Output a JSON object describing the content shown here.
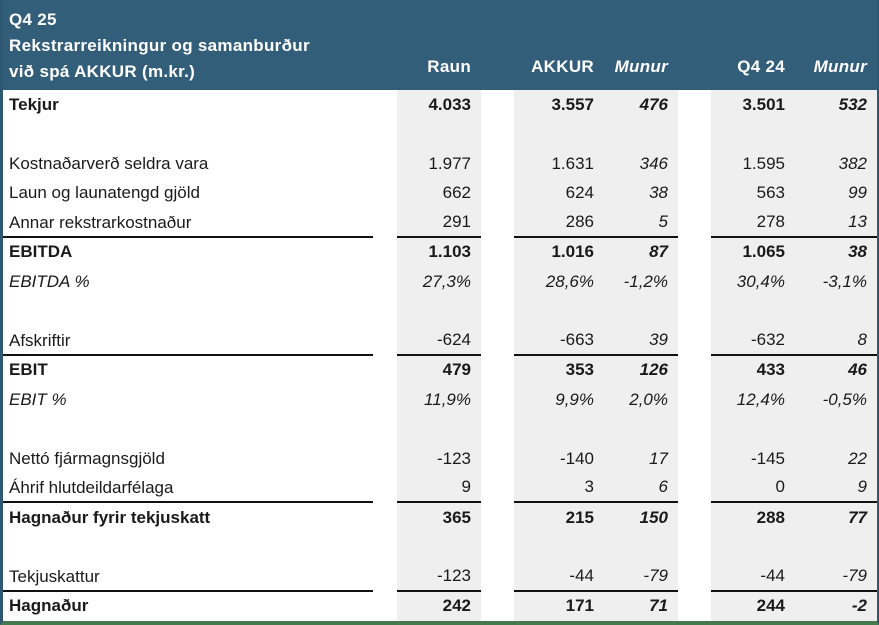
{
  "header": {
    "period": "Q4 25",
    "title_line1": "Rekstrarreikningur og samanburður",
    "title_line2": "við spá AKKUR (m.kr.)",
    "columns": [
      "Raun",
      "AKKUR",
      "Munur",
      "Q4 24",
      "Munur"
    ]
  },
  "colors": {
    "header_bg": "#335E7A",
    "header_text": "#FFFFFF",
    "shaded_col": "#EFEFEF",
    "text": "#1A1A1A",
    "outline": "#2E5872",
    "bottom_accent": "#45784D",
    "rule": "#111111"
  },
  "rows": [
    {
      "label": "Tekjur",
      "style": "bold",
      "underline": false,
      "raun": "4.033",
      "akkur": "3.557",
      "munur_akkur": "476",
      "q424": "3.501",
      "munur_q424": "532"
    },
    {
      "label": "",
      "style": "blank",
      "underline": false,
      "raun": "",
      "akkur": "",
      "munur_akkur": "",
      "q424": "",
      "munur_q424": ""
    },
    {
      "label": "Kostnaðarverð seldra vara",
      "style": "normal",
      "underline": false,
      "raun": "1.977",
      "akkur": "1.631",
      "munur_akkur": "346",
      "q424": "1.595",
      "munur_q424": "382"
    },
    {
      "label": "Laun og launatengd gjöld",
      "style": "normal",
      "underline": false,
      "raun": "662",
      "akkur": "624",
      "munur_akkur": "38",
      "q424": "563",
      "munur_q424": "99"
    },
    {
      "label": "Annar rekstrarkostnaður",
      "style": "normal",
      "underline": true,
      "raun": "291",
      "akkur": "286",
      "munur_akkur": "5",
      "q424": "278",
      "munur_q424": "13"
    },
    {
      "label": "EBITDA",
      "style": "bold",
      "underline": false,
      "raun": "1.103",
      "akkur": "1.016",
      "munur_akkur": "87",
      "q424": "1.065",
      "munur_q424": "38"
    },
    {
      "label": "EBITDA %",
      "style": "italic",
      "underline": false,
      "raun": "27,3%",
      "akkur": "28,6%",
      "munur_akkur": "-1,2%",
      "q424": "30,4%",
      "munur_q424": "-3,1%"
    },
    {
      "label": "",
      "style": "blank",
      "underline": false,
      "raun": "",
      "akkur": "",
      "munur_akkur": "",
      "q424": "",
      "munur_q424": ""
    },
    {
      "label": "Afskriftir",
      "style": "normal",
      "underline": true,
      "raun": "-624",
      "akkur": "-663",
      "munur_akkur": "39",
      "q424": "-632",
      "munur_q424": "8"
    },
    {
      "label": "EBIT",
      "style": "bold",
      "underline": false,
      "raun": "479",
      "akkur": "353",
      "munur_akkur": "126",
      "q424": "433",
      "munur_q424": "46"
    },
    {
      "label": "EBIT %",
      "style": "italic",
      "underline": false,
      "raun": "11,9%",
      "akkur": "9,9%",
      "munur_akkur": "2,0%",
      "q424": "12,4%",
      "munur_q424": "-0,5%"
    },
    {
      "label": "",
      "style": "blank",
      "underline": false,
      "raun": "",
      "akkur": "",
      "munur_akkur": "",
      "q424": "",
      "munur_q424": ""
    },
    {
      "label": "Nettó fjármagnsgjöld",
      "style": "normal",
      "underline": false,
      "raun": "-123",
      "akkur": "-140",
      "munur_akkur": "17",
      "q424": "-145",
      "munur_q424": "22"
    },
    {
      "label": "Áhrif hlutdeildarfélaga",
      "style": "normal",
      "underline": true,
      "raun": "9",
      "akkur": "3",
      "munur_akkur": "6",
      "q424": "0",
      "munur_q424": "9"
    },
    {
      "label": "Hagnaður fyrir tekjuskatt",
      "style": "bold",
      "underline": false,
      "raun": "365",
      "akkur": "215",
      "munur_akkur": "150",
      "q424": "288",
      "munur_q424": "77"
    },
    {
      "label": "",
      "style": "blank",
      "underline": false,
      "raun": "",
      "akkur": "",
      "munur_akkur": "",
      "q424": "",
      "munur_q424": ""
    },
    {
      "label": "Tekjuskattur",
      "style": "normal",
      "underline": true,
      "raun": "-123",
      "akkur": "-44",
      "munur_akkur": "-79",
      "q424": "-44",
      "munur_q424": "-79"
    },
    {
      "label": "Hagnaður",
      "style": "bold",
      "underline": false,
      "raun": "242",
      "akkur": "171",
      "munur_akkur": "71",
      "q424": "244",
      "munur_q424": "-2"
    }
  ]
}
